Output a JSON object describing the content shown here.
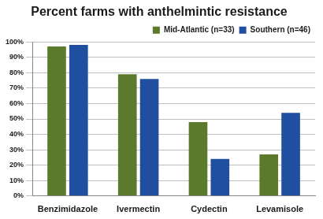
{
  "chart_data": {
    "type": "bar",
    "title": "Percent farms with anthelmintic resistance",
    "categories": [
      "Benzimidazole",
      "Ivermectin",
      "Cydectin",
      "Levamisole"
    ],
    "series": [
      {
        "name": "Mid-Atlantic (n=33)",
        "color": "#5b7a2b",
        "values": [
          97,
          79,
          48,
          27
        ]
      },
      {
        "name": "Southern (n=46)",
        "color": "#1f4f9e",
        "values": [
          98,
          76,
          24,
          54
        ]
      }
    ],
    "ylim": [
      0,
      100
    ],
    "yticks": [
      {
        "value": 0,
        "label": "0%"
      },
      {
        "value": 10,
        "label": "10%"
      },
      {
        "value": 20,
        "label": "20%"
      },
      {
        "value": 30,
        "label": "30%"
      },
      {
        "value": 40,
        "label": "40%"
      },
      {
        "value": 50,
        "label": "50%"
      },
      {
        "value": 60,
        "label": "60%"
      },
      {
        "value": 70,
        "label": "70%"
      },
      {
        "value": 80,
        "label": "80%"
      },
      {
        "value": 90,
        "label": "90%"
      },
      {
        "value": 100,
        "label": "100%"
      }
    ],
    "grid": true,
    "legend": "upper right"
  }
}
